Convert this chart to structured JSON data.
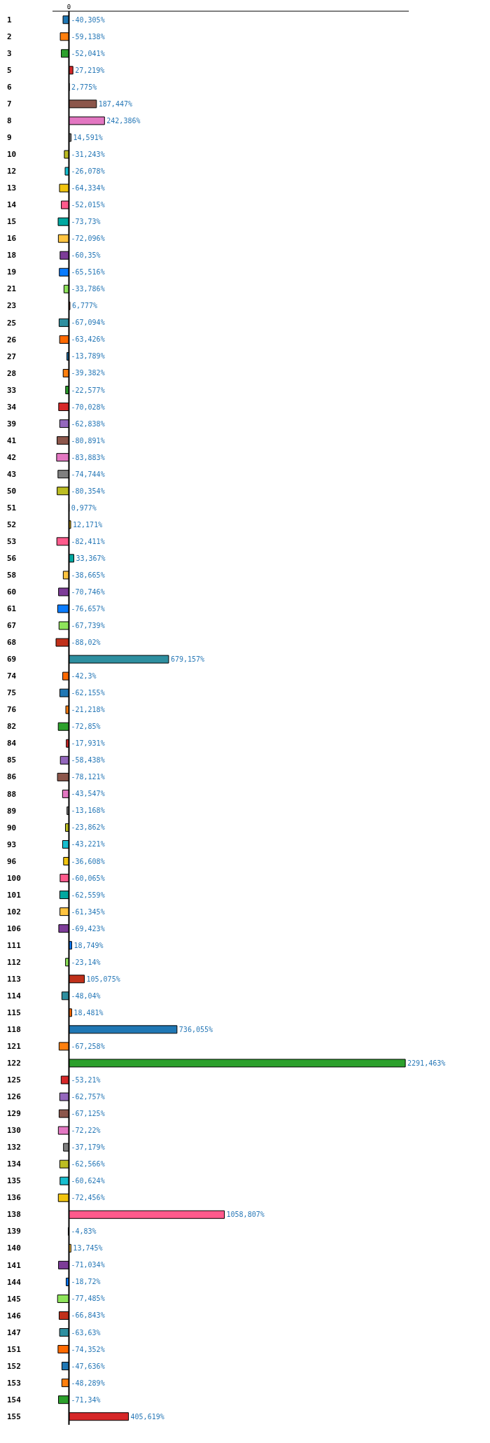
{
  "chart_data": {
    "type": "bar",
    "orientation": "horizontal",
    "categories": [
      "1",
      "2",
      "3",
      "5",
      "6",
      "7",
      "8",
      "9",
      "10",
      "12",
      "13",
      "14",
      "15",
      "16",
      "18",
      "19",
      "21",
      "23",
      "25",
      "26",
      "27",
      "28",
      "33",
      "34",
      "39",
      "41",
      "42",
      "43",
      "50",
      "51",
      "52",
      "53",
      "56",
      "58",
      "60",
      "61",
      "67",
      "68",
      "69",
      "74",
      "75",
      "76",
      "82",
      "84",
      "85",
      "86",
      "88",
      "89",
      "90",
      "93",
      "96",
      "100",
      "101",
      "102",
      "106",
      "111",
      "112",
      "113",
      "114",
      "115",
      "118",
      "121",
      "122",
      "125",
      "126",
      "129",
      "130",
      "132",
      "134",
      "135",
      "136",
      "138",
      "139",
      "140",
      "141",
      "144",
      "145",
      "146",
      "147",
      "151",
      "152",
      "153",
      "154",
      "155"
    ],
    "values": [
      -40.305,
      -59.138,
      -52.041,
      27.219,
      2.775,
      187.447,
      242.386,
      14.591,
      -31.243,
      -26.078,
      -64.334,
      -52.015,
      -73.73,
      -72.096,
      -60.35,
      -65.516,
      -33.786,
      6.777,
      -67.094,
      -63.426,
      -13.789,
      -39.382,
      -22.577,
      -70.028,
      -62.838,
      -80.891,
      -83.883,
      -74.744,
      -80.354,
      0.977,
      12.171,
      -82.411,
      33.367,
      -38.665,
      -70.746,
      -76.657,
      -67.739,
      -88.02,
      679.157,
      -42.3,
      -62.155,
      -21.218,
      -72.85,
      -17.931,
      -58.438,
      -78.121,
      -43.547,
      -13.168,
      -23.862,
      -43.221,
      -36.608,
      -60.065,
      -62.559,
      -61.345,
      -69.423,
      18.749,
      -23.14,
      105.075,
      -48.04,
      18.481,
      736.055,
      -67.258,
      2291.463,
      -53.21,
      -62.757,
      -67.125,
      -72.22,
      -37.179,
      -62.566,
      -60.624,
      -72.456,
      1058.807,
      -4.83,
      13.745,
      -71.034,
      -18.72,
      -77.485,
      -66.843,
      -63.63,
      -74.352,
      -47.636,
      -48.289,
      -71.34,
      405.619
    ],
    "value_labels": [
      "-40,305%",
      "-59,138%",
      "-52,041%",
      "27,219%",
      "2,775%",
      "187,447%",
      "242,386%",
      "14,591%",
      "-31,243%",
      "-26,078%",
      "-64,334%",
      "-52,015%",
      "-73,73%",
      "-72,096%",
      "-60,35%",
      "-65,516%",
      "-33,786%",
      "6,777%",
      "-67,094%",
      "-63,426%",
      "-13,789%",
      "-39,382%",
      "-22,577%",
      "-70,028%",
      "-62,838%",
      "-80,891%",
      "-83,883%",
      "-74,744%",
      "-80,354%",
      "0,977%",
      "12,171%",
      "-82,411%",
      "33,367%",
      "-38,665%",
      "-70,746%",
      "-76,657%",
      "-67,739%",
      "-88,02%",
      "679,157%",
      "-42,3%",
      "-62,155%",
      "-21,218%",
      "-72,85%",
      "-17,931%",
      "-58,438%",
      "-78,121%",
      "-43,547%",
      "-13,168%",
      "-23,862%",
      "-43,221%",
      "-36,608%",
      "-60,065%",
      "-62,559%",
      "-61,345%",
      "-69,423%",
      "18,749%",
      "-23,14%",
      "105,075%",
      "-48,04%",
      "18,481%",
      "736,055%",
      "-67,258%",
      "2291,463%",
      "-53,21%",
      "-62,757%",
      "-67,125%",
      "-72,22%",
      "-37,179%",
      "-62,566%",
      "-60,624%",
      "-72,456%",
      "1058,807%",
      "-4,83%",
      "13,745%",
      "-71,034%",
      "-18,72%",
      "-77,485%",
      "-66,843%",
      "-63,63%",
      "-74,352%",
      "-47,636%",
      "-48,289%",
      "-71,34%",
      "405,619%"
    ],
    "colors": [
      "#1f77b4",
      "#ff7f0e",
      "#2ca02c",
      "#d62728",
      "#9467bd",
      "#8c564b",
      "#e377c2",
      "#7f7f7f",
      "#bcbd22",
      "#17becf",
      "#f1c40f",
      "#ff5a8c",
      "#00a8a0",
      "#ffc440",
      "#7d3c98",
      "#0a7cff",
      "#8ee45a",
      "#c0301a",
      "#2e8fa0",
      "#ff6a00",
      "#1f77b4",
      "#ff7f0e",
      "#2ca02c",
      "#d62728",
      "#9467bd",
      "#8c564b",
      "#e377c2",
      "#7f7f7f",
      "#bcbd22",
      "#17becf",
      "#f1c40f",
      "#ff5a8c",
      "#00a8a0",
      "#ffc440",
      "#7d3c98",
      "#0a7cff",
      "#8ee45a",
      "#c0301a",
      "#2e8fa0",
      "#ff6a00",
      "#1f77b4",
      "#ff7f0e",
      "#2ca02c",
      "#d62728",
      "#9467bd",
      "#8c564b",
      "#e377c2",
      "#7f7f7f",
      "#bcbd22",
      "#17becf",
      "#f1c40f",
      "#ff5a8c",
      "#00a8a0",
      "#ffc440",
      "#7d3c98",
      "#0a7cff",
      "#8ee45a",
      "#c0301a",
      "#2e8fa0",
      "#ff6a00",
      "#1f77b4",
      "#ff7f0e",
      "#2ca02c",
      "#d62728",
      "#9467bd",
      "#8c564b",
      "#e377c2",
      "#7f7f7f",
      "#bcbd22",
      "#17becf",
      "#f1c40f",
      "#ff5a8c",
      "#00a8a0",
      "#ffc440",
      "#7d3c98",
      "#0a7cff",
      "#8ee45a",
      "#c0301a",
      "#2e8fa0",
      "#ff6a00",
      "#1f77b4",
      "#ff7f0e",
      "#2ca02c",
      "#d62728"
    ],
    "xlim": [
      -112,
      2315
    ],
    "ref_lines": [
      {
        "axis": "x",
        "value": 0,
        "color": "#000000",
        "label": "0"
      }
    ],
    "grid": false,
    "legend": false
  }
}
